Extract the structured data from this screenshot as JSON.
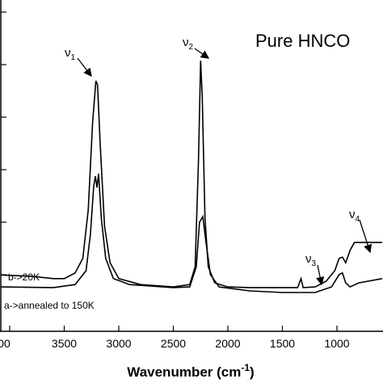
{
  "chart_data": {
    "type": "line",
    "title": "Pure HNCO",
    "x_label": {
      "text": "Wavenumber (cm",
      "sup": "-1",
      "end": ")"
    },
    "xlim": [
      4089,
      585
    ],
    "xticks": [
      {
        "value": 4000,
        "label": "00"
      },
      3500,
      3000,
      2500,
      2000,
      1500,
      1000
    ],
    "ylim": [
      0,
      1
    ],
    "annotations": [
      {
        "text": "ν",
        "sub": "1"
      },
      {
        "text": "ν",
        "sub": "2"
      },
      {
        "text": "ν",
        "sub": "3"
      },
      {
        "text": "ν",
        "sub": "4"
      }
    ],
    "series": [
      {
        "name": "b->20K",
        "color": "#000000",
        "x": [
          4080,
          3800,
          3600,
          3500,
          3400,
          3330,
          3280,
          3240,
          3210,
          3195,
          3170,
          3130,
          3080,
          3000,
          2800,
          2500,
          2350,
          2300,
          2270,
          2250,
          2235,
          2210,
          2180,
          2120,
          2000,
          1800,
          1500,
          1360,
          1330,
          1310,
          1200,
          1100,
          1020,
          980,
          950,
          920,
          880,
          840,
          800,
          700,
          585
        ],
        "values": [
          0.17,
          0.166,
          0.159,
          0.159,
          0.176,
          0.22,
          0.366,
          0.63,
          0.756,
          0.744,
          0.56,
          0.317,
          0.207,
          0.159,
          0.141,
          0.134,
          0.141,
          0.195,
          0.512,
          0.817,
          0.707,
          0.341,
          0.195,
          0.146,
          0.134,
          0.132,
          0.132,
          0.132,
          0.159,
          0.132,
          0.134,
          0.151,
          0.183,
          0.22,
          0.224,
          0.207,
          0.244,
          0.268,
          0.268,
          0.268,
          0.268
        ]
      },
      {
        "name": "a->annealed to 150K",
        "color": "#000000",
        "x": [
          4080,
          3600,
          3400,
          3300,
          3260,
          3230,
          3215,
          3200,
          3185,
          3160,
          3120,
          3050,
          2900,
          2500,
          2350,
          2290,
          2260,
          2230,
          2200,
          2160,
          2080,
          1800,
          1500,
          1200,
          1050,
          980,
          950,
          920,
          880,
          800,
          585
        ],
        "values": [
          0.134,
          0.132,
          0.141,
          0.183,
          0.293,
          0.439,
          0.468,
          0.434,
          0.476,
          0.341,
          0.22,
          0.159,
          0.141,
          0.132,
          0.134,
          0.195,
          0.329,
          0.346,
          0.268,
          0.171,
          0.134,
          0.122,
          0.117,
          0.117,
          0.134,
          0.171,
          0.176,
          0.146,
          0.134,
          0.146,
          0.159
        ]
      }
    ]
  }
}
